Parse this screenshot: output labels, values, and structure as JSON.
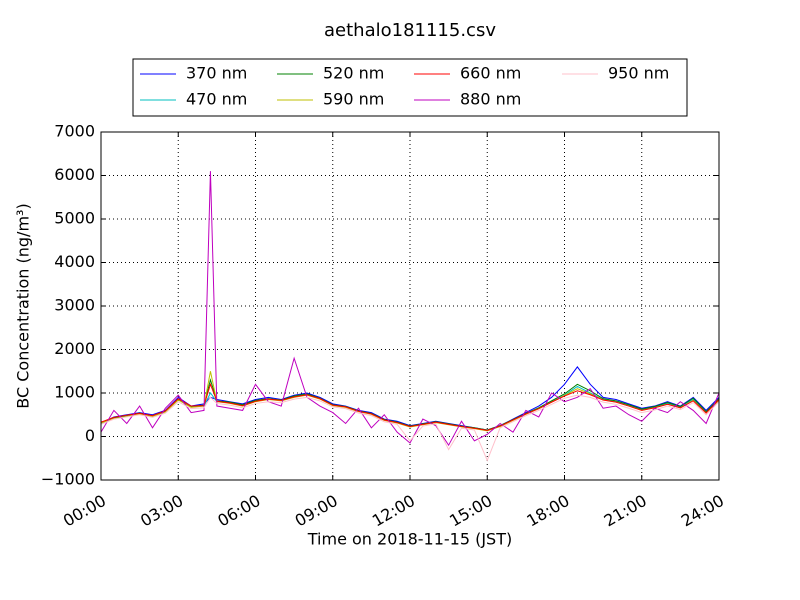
{
  "chart_data": {
    "type": "line",
    "title": "aethalo181115.csv",
    "x_label": "Time on 2018-11-15 (JST)",
    "y_label": "BC Concentration (ng/m³)",
    "x": [
      0,
      0.5,
      1,
      1.5,
      2,
      2.5,
      3,
      3.5,
      4,
      4.25,
      4.5,
      5,
      5.5,
      6,
      6.5,
      7,
      7.5,
      8,
      8.5,
      9,
      9.5,
      10,
      10.5,
      11,
      11.5,
      12,
      12.5,
      13,
      13.5,
      14,
      14.5,
      15,
      15.5,
      16,
      16.5,
      17,
      17.5,
      18,
      18.5,
      19,
      19.5,
      20,
      20.5,
      21,
      21.5,
      22,
      22.5,
      23,
      23.5,
      24
    ],
    "xlim": [
      0,
      24
    ],
    "xticks": [
      {
        "value": 0,
        "label": "00:00"
      },
      {
        "value": 3,
        "label": "03:00"
      },
      {
        "value": 6,
        "label": "06:00"
      },
      {
        "value": 9,
        "label": "09:00"
      },
      {
        "value": 12,
        "label": "12:00"
      },
      {
        "value": 15,
        "label": "15:00"
      },
      {
        "value": 18,
        "label": "18:00"
      },
      {
        "value": 21,
        "label": "21:00"
      },
      {
        "value": 24,
        "label": "24:00"
      }
    ],
    "ylim": [
      -1000,
      7000
    ],
    "yticks": [
      {
        "value": -1000,
        "label": "−1000"
      },
      0,
      1000,
      2000,
      3000,
      4000,
      5000,
      6000,
      7000
    ],
    "grid": true,
    "legend": "top",
    "series": [
      {
        "name": "370 nm",
        "color": "#0000ff",
        "values": [
          300,
          450,
          500,
          550,
          500,
          600,
          900,
          700,
          750,
          900,
          850,
          800,
          750,
          850,
          900,
          850,
          950,
          1000,
          900,
          750,
          700,
          600,
          550,
          400,
          350,
          250,
          300,
          350,
          300,
          250,
          200,
          150,
          250,
          400,
          550,
          700,
          900,
          1200,
          1600,
          1200,
          900,
          850,
          750,
          650,
          700,
          800,
          700,
          900,
          600,
          900
        ]
      },
      {
        "name": "470 nm",
        "color": "#00bfbf",
        "values": [
          300,
          420,
          480,
          520,
          480,
          580,
          850,
          680,
          700,
          1000,
          800,
          780,
          720,
          820,
          860,
          830,
          920,
          960,
          870,
          720,
          680,
          580,
          520,
          380,
          320,
          230,
          280,
          330,
          280,
          230,
          190,
          140,
          240,
          380,
          520,
          650,
          800,
          950,
          1150,
          1000,
          850,
          800,
          720,
          620,
          680,
          760,
          680,
          850,
          560,
          850
        ]
      },
      {
        "name": "520 nm",
        "color": "#008000",
        "values": [
          320,
          430,
          470,
          540,
          470,
          570,
          860,
          690,
          720,
          1300,
          820,
          790,
          730,
          830,
          870,
          840,
          930,
          980,
          880,
          730,
          690,
          590,
          530,
          390,
          330,
          240,
          290,
          340,
          290,
          240,
          200,
          150,
          250,
          390,
          530,
          660,
          820,
          980,
          1200,
          1050,
          870,
          820,
          730,
          630,
          690,
          780,
          690,
          880,
          570,
          870
        ]
      },
      {
        "name": "590 nm",
        "color": "#bfbf00",
        "values": [
          310,
          410,
          460,
          520,
          460,
          560,
          840,
          670,
          700,
          1500,
          800,
          760,
          700,
          800,
          850,
          820,
          900,
          950,
          860,
          710,
          670,
          570,
          510,
          370,
          310,
          220,
          270,
          320,
          270,
          220,
          180,
          130,
          230,
          370,
          510,
          640,
          790,
          940,
          1100,
          980,
          840,
          790,
          700,
          600,
          660,
          740,
          660,
          830,
          540,
          830
        ]
      },
      {
        "name": "660 nm",
        "color": "#ff0000",
        "values": [
          330,
          440,
          490,
          530,
          480,
          590,
          870,
          700,
          710,
          1200,
          810,
          770,
          710,
          810,
          860,
          830,
          910,
          960,
          870,
          720,
          680,
          580,
          520,
          380,
          320,
          230,
          280,
          330,
          280,
          230,
          190,
          140,
          240,
          380,
          520,
          640,
          790,
          930,
          1050,
          960,
          840,
          790,
          700,
          600,
          660,
          740,
          660,
          820,
          540,
          850
        ]
      },
      {
        "name": "880 nm",
        "color": "#bf00bf",
        "values": [
          100,
          600,
          300,
          700,
          200,
          650,
          950,
          550,
          600,
          6100,
          700,
          650,
          600,
          1200,
          800,
          700,
          1800,
          900,
          700,
          550,
          300,
          650,
          200,
          500,
          100,
          -150,
          400,
          250,
          -200,
          350,
          -100,
          50,
          300,
          100,
          600,
          450,
          1000,
          800,
          900,
          1100,
          650,
          700,
          500,
          350,
          650,
          550,
          800,
          600,
          300,
          1000
        ]
      },
      {
        "name": "950 nm",
        "color": "#ffc0cb",
        "values": [
          280,
          400,
          450,
          500,
          440,
          540,
          800,
          640,
          660,
          900,
          760,
          720,
          660,
          760,
          800,
          780,
          860,
          900,
          820,
          680,
          640,
          540,
          480,
          340,
          280,
          -100,
          240,
          290,
          -300,
          190,
          150,
          -550,
          200,
          340,
          480,
          600,
          740,
          880,
          950,
          900,
          790,
          740,
          650,
          550,
          610,
          700,
          620,
          780,
          500,
          800
        ]
      }
    ]
  }
}
